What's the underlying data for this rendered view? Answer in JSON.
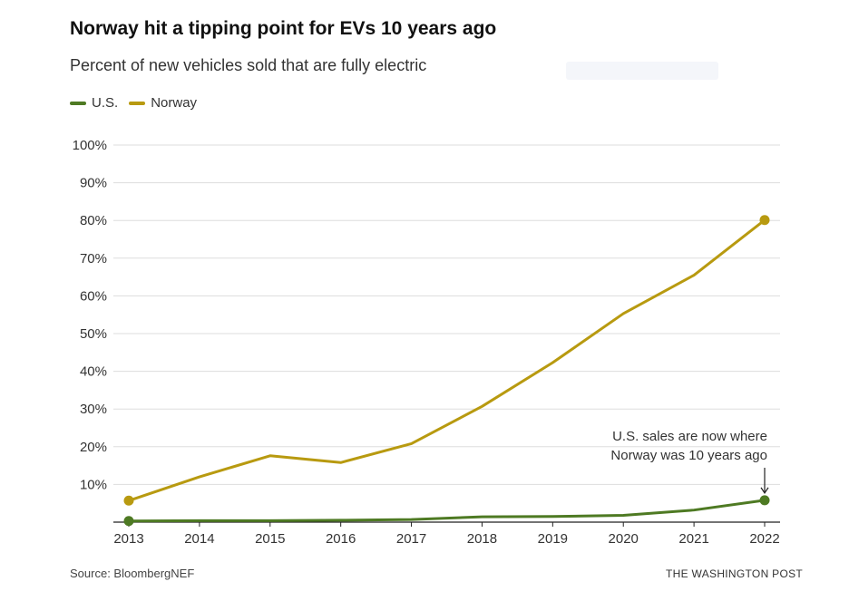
{
  "chart_data": {
    "type": "line",
    "title": "Norway hit a tipping point for EVs 10 years ago",
    "subtitle": "Percent of new vehicles sold that are fully electric",
    "x": [
      2013,
      2014,
      2015,
      2016,
      2017,
      2018,
      2019,
      2020,
      2021,
      2022
    ],
    "series": [
      {
        "name": "U.S.",
        "color": "#4e7a23",
        "values": [
          0.3,
          0.4,
          0.4,
          0.5,
          0.7,
          1.4,
          1.5,
          1.8,
          3.2,
          5.8
        ]
      },
      {
        "name": "Norway",
        "color": "#b89a10",
        "values": [
          5.7,
          12.0,
          17.6,
          15.8,
          20.8,
          30.7,
          42.3,
          55.3,
          65.5,
          80.1
        ]
      }
    ],
    "ylim": [
      0,
      100
    ],
    "y_ticks": [
      "10%",
      "20%",
      "30%",
      "40%",
      "50%",
      "60%",
      "70%",
      "80%",
      "90%",
      "100%"
    ],
    "y_tick_values": [
      10,
      20,
      30,
      40,
      50,
      60,
      70,
      80,
      90,
      100
    ],
    "x_tick_labels": [
      "2013",
      "2014",
      "2015",
      "2016",
      "2017",
      "2018",
      "2019",
      "2020",
      "2021",
      "2022"
    ],
    "grid": true,
    "legend_position": "top-left",
    "annotation": {
      "line1": "U.S. sales are now where",
      "line2": "Norway was 10 years ago",
      "target_series": "U.S.",
      "target_x": 2022
    },
    "endpoint_markers": true
  },
  "footer": {
    "source": "Source: BloombergNEF",
    "credit": "THE WASHINGTON POST"
  },
  "colors": {
    "us": "#4e7a23",
    "norway": "#b89a10",
    "grid": "#dddddd",
    "axis": "#222222"
  }
}
